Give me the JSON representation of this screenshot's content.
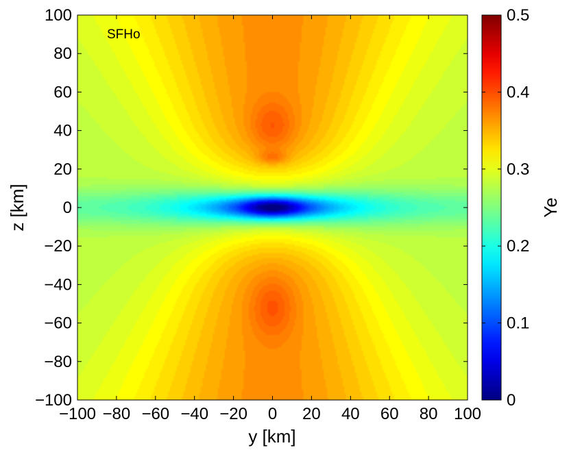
{
  "chart_data": {
    "type": "heatmap",
    "title": "",
    "annotation": "SFHo",
    "xlabel": "y [km]",
    "ylabel": "z [km]",
    "colorbar_label": "Ye",
    "xlim": [
      -100,
      100
    ],
    "ylim": [
      -100,
      100
    ],
    "clim": [
      0,
      0.5
    ],
    "colormap": "jet",
    "x_ticks": [
      -100,
      -80,
      -60,
      -40,
      -20,
      0,
      20,
      40,
      60,
      80,
      100
    ],
    "y_ticks": [
      -100,
      -80,
      -60,
      -40,
      -20,
      0,
      20,
      40,
      60,
      80,
      100
    ],
    "x_tick_labels": [
      "−100",
      "−80",
      "−60",
      "−40",
      "−20",
      "0",
      "20",
      "40",
      "60",
      "80",
      "100"
    ],
    "y_tick_labels": [
      "−100",
      "−80",
      "−60",
      "−40",
      "−20",
      "0",
      "20",
      "40",
      "60",
      "80",
      "100"
    ],
    "colorbar_ticks": [
      0,
      0.1,
      0.2,
      0.3,
      0.4,
      0.5
    ],
    "colorbar_tick_labels": [
      "0",
      "0.1",
      "0.2",
      "0.3",
      "0.4",
      "0.5"
    ],
    "grid": false,
    "features": [
      {
        "description": "low-Ye core",
        "y": 0,
        "z": 0,
        "value": 0.03
      },
      {
        "description": "polar maximum (upper)",
        "y": 0,
        "z": 42,
        "value": 0.39
      },
      {
        "description": "polar maximum (lower)",
        "y": 0,
        "z": -52,
        "value": 0.38
      },
      {
        "description": "local peak",
        "y": 0,
        "z": 26,
        "value": 0.31
      }
    ]
  }
}
